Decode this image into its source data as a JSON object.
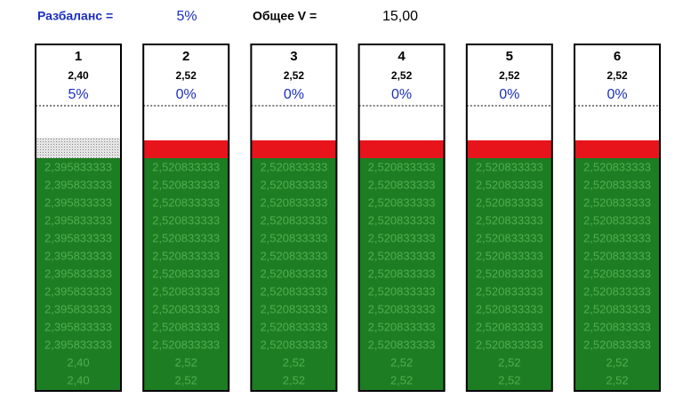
{
  "header": {
    "imbalance_label": "Разбаланс =",
    "imbalance_value": "5%",
    "total_label": "Общее V =",
    "total_value": "15,00"
  },
  "columns": [
    {
      "label": "1",
      "voltage": "2,40",
      "percent": "5%",
      "band": "dotted",
      "rows": [
        "2,395833333",
        "2,395833333",
        "2,395833333",
        "2,395833333",
        "2,395833333",
        "2,395833333",
        "2,395833333",
        "2,395833333",
        "2,395833333",
        "2,395833333",
        "2,395833333",
        "2,40",
        "2,40"
      ]
    },
    {
      "label": "2",
      "voltage": "2,52",
      "percent": "0%",
      "band": "#e8141c",
      "rows": [
        "2,520833333",
        "2,520833333",
        "2,520833333",
        "2,520833333",
        "2,520833333",
        "2,520833333",
        "2,520833333",
        "2,520833333",
        "2,520833333",
        "2,520833333",
        "2,520833333",
        "2,52",
        "2,52"
      ]
    },
    {
      "label": "3",
      "voltage": "2,52",
      "percent": "0%",
      "band": "#e8141c",
      "rows": [
        "2,520833333",
        "2,520833333",
        "2,520833333",
        "2,520833333",
        "2,520833333",
        "2,520833333",
        "2,520833333",
        "2,520833333",
        "2,520833333",
        "2,520833333",
        "2,520833333",
        "2,52",
        "2,52"
      ]
    },
    {
      "label": "4",
      "voltage": "2,52",
      "percent": "0%",
      "band": "#e8141c",
      "rows": [
        "2,520833333",
        "2,520833333",
        "2,520833333",
        "2,520833333",
        "2,520833333",
        "2,520833333",
        "2,520833333",
        "2,520833333",
        "2,520833333",
        "2,520833333",
        "2,520833333",
        "2,52",
        "2,52"
      ]
    },
    {
      "label": "5",
      "voltage": "2,52",
      "percent": "0%",
      "band": "#e8141c",
      "rows": [
        "2,520833333",
        "2,520833333",
        "2,520833333",
        "2,520833333",
        "2,520833333",
        "2,520833333",
        "2,520833333",
        "2,520833333",
        "2,520833333",
        "2,520833333",
        "2,520833333",
        "2,52",
        "2,52"
      ]
    },
    {
      "label": "6",
      "voltage": "2,52",
      "percent": "0%",
      "band": "#e8141c",
      "rows": [
        "2,520833333",
        "2,520833333",
        "2,520833333",
        "2,520833333",
        "2,520833333",
        "2,520833333",
        "2,520833333",
        "2,520833333",
        "2,520833333",
        "2,520833333",
        "2,520833333",
        "2,52",
        "2,52"
      ]
    }
  ]
}
